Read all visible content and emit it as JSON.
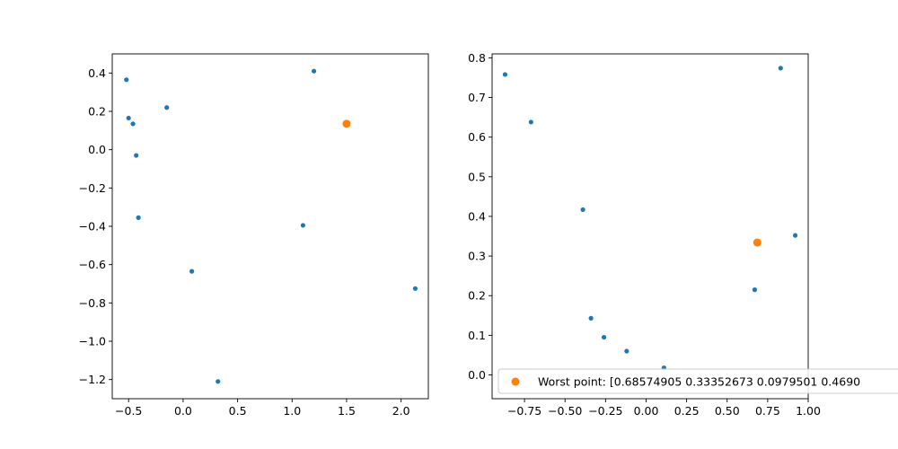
{
  "chart_data": [
    {
      "type": "scatter",
      "xlim": [
        -0.65,
        2.25
      ],
      "ylim": [
        -1.3,
        0.5
      ],
      "xticks": [
        -0.5,
        0.0,
        0.5,
        1.0,
        1.5,
        2.0
      ],
      "xtick_labels": [
        "−0.5",
        "0.0",
        "0.5",
        "1.0",
        "1.5",
        "2.0"
      ],
      "yticks": [
        -1.2,
        -1.0,
        -0.8,
        -0.6,
        -0.4,
        -0.2,
        0.0,
        0.2,
        0.4
      ],
      "ytick_labels": [
        "−1.2",
        "−1.0",
        "−0.8",
        "−0.6",
        "−0.4",
        "−0.2",
        "0.0",
        "0.2",
        "0.4"
      ],
      "grid": false,
      "series": [
        {
          "color": "#1f77b4",
          "marker": "small-dot",
          "points": [
            {
              "x": -0.52,
              "y": 0.365
            },
            {
              "x": -0.5,
              "y": 0.165
            },
            {
              "x": -0.46,
              "y": 0.135
            },
            {
              "x": -0.43,
              "y": -0.03
            },
            {
              "x": -0.15,
              "y": 0.22
            },
            {
              "x": -0.41,
              "y": -0.355
            },
            {
              "x": 0.08,
              "y": -0.635
            },
            {
              "x": 0.32,
              "y": -1.21
            },
            {
              "x": 1.1,
              "y": -0.395
            },
            {
              "x": 1.2,
              "y": 0.41
            },
            {
              "x": 2.13,
              "y": -0.725
            }
          ]
        },
        {
          "color": "#ff7f0e",
          "marker": "large-dot",
          "points": [
            {
              "x": 1.5,
              "y": 0.135
            }
          ]
        }
      ]
    },
    {
      "type": "scatter",
      "xlim": [
        -0.95,
        1.0
      ],
      "ylim": [
        -0.06,
        0.81
      ],
      "xticks": [
        -0.75,
        -0.5,
        -0.25,
        0.0,
        0.25,
        0.5,
        0.75,
        1.0
      ],
      "xtick_labels": [
        "−0.75",
        "−0.50",
        "−0.25",
        "0.00",
        "0.25",
        "0.50",
        "0.75",
        "1.00"
      ],
      "yticks": [
        0.0,
        0.1,
        0.2,
        0.3,
        0.4,
        0.5,
        0.6,
        0.7,
        0.8
      ],
      "ytick_labels": [
        "0.0",
        "0.1",
        "0.2",
        "0.3",
        "0.4",
        "0.5",
        "0.6",
        "0.7",
        "0.8"
      ],
      "grid": false,
      "legend": {
        "placement": "lower-right",
        "entries": [
          {
            "label": "Worst point: [0.68574905 0.33352673 0.0979501  0.4690",
            "color": "#ff7f0e"
          }
        ]
      },
      "series": [
        {
          "color": "#1f77b4",
          "marker": "small-dot",
          "points": [
            {
              "x": -0.87,
              "y": 0.758
            },
            {
              "x": -0.71,
              "y": 0.638
            },
            {
              "x": -0.39,
              "y": 0.417
            },
            {
              "x": -0.34,
              "y": 0.143
            },
            {
              "x": -0.26,
              "y": 0.095
            },
            {
              "x": -0.12,
              "y": 0.06
            },
            {
              "x": 0.11,
              "y": 0.018
            },
            {
              "x": 0.67,
              "y": 0.215
            },
            {
              "x": 0.83,
              "y": 0.774
            },
            {
              "x": 0.92,
              "y": 0.352
            }
          ]
        },
        {
          "color": "#ff7f0e",
          "marker": "large-dot",
          "points": [
            {
              "x": 0.686,
              "y": 0.334
            }
          ]
        }
      ]
    }
  ]
}
